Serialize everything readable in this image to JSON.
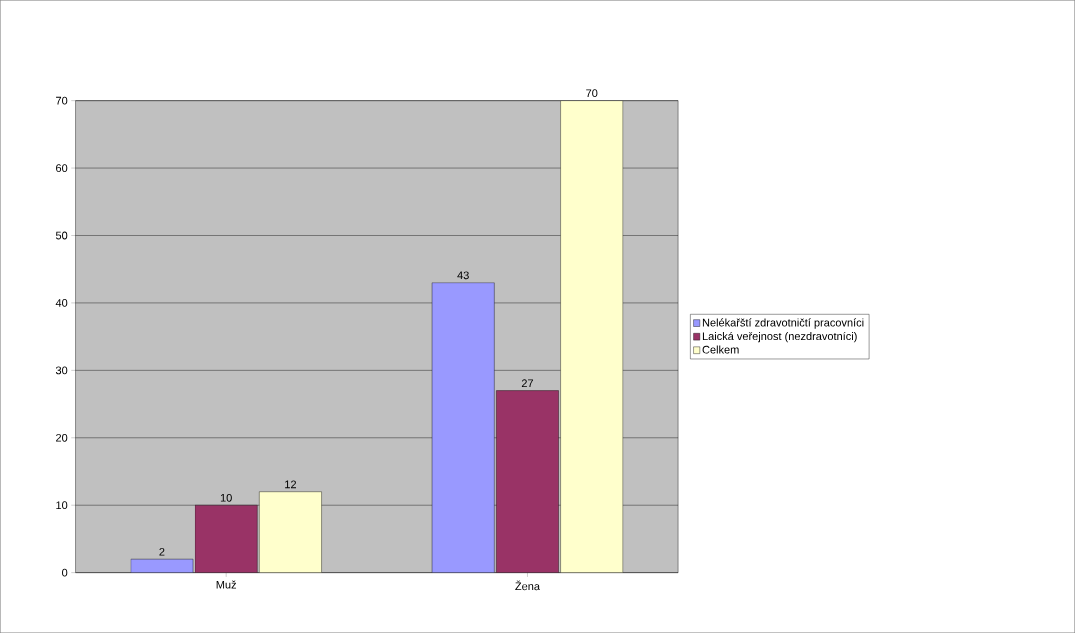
{
  "chart_data": {
    "type": "bar",
    "categories": [
      "Muž",
      "Žena"
    ],
    "series": [
      {
        "name": "Nelékařští zdravotničtí pracovníci",
        "color": "#9999ff",
        "values": [
          2,
          43
        ]
      },
      {
        "name": "Laická veřejnost (nezdravotníci)",
        "color": "#993366",
        "values": [
          10,
          27
        ]
      },
      {
        "name": "Celkem",
        "color": "#ffffcc",
        "values": [
          12,
          70
        ]
      }
    ],
    "ylim": [
      0,
      70
    ],
    "yticks": [
      0,
      10,
      20,
      30,
      40,
      50,
      60,
      70
    ],
    "grid": "y",
    "legend": "right",
    "data_labels": true
  }
}
